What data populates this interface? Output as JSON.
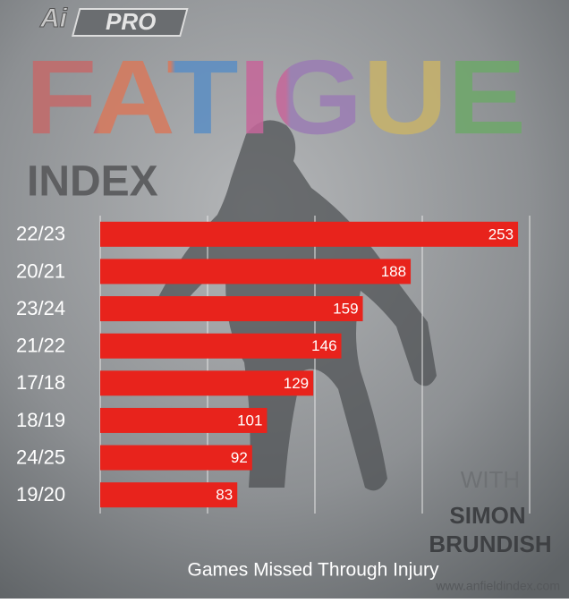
{
  "chart_data": {
    "type": "bar",
    "orientation": "horizontal",
    "brand": "PRO",
    "title": "FATIGUE",
    "subtitle": "INDEX",
    "byline": "WITH",
    "author_first": "SIMON",
    "author_last": "BRUNDISH",
    "website": "www.anfieldindex.com",
    "x_label": "Games Missed Through Injury",
    "categories": [
      "22/23",
      "20/21",
      "23/24",
      "21/22",
      "17/18",
      "18/19",
      "24/25",
      "19/20"
    ],
    "values": [
      253,
      188,
      159,
      146,
      129,
      101,
      92,
      83
    ],
    "color": "#e8231c",
    "xlim": [
      0,
      260
    ],
    "xticks": [
      0,
      65,
      130,
      195,
      260
    ],
    "grid": true
  }
}
